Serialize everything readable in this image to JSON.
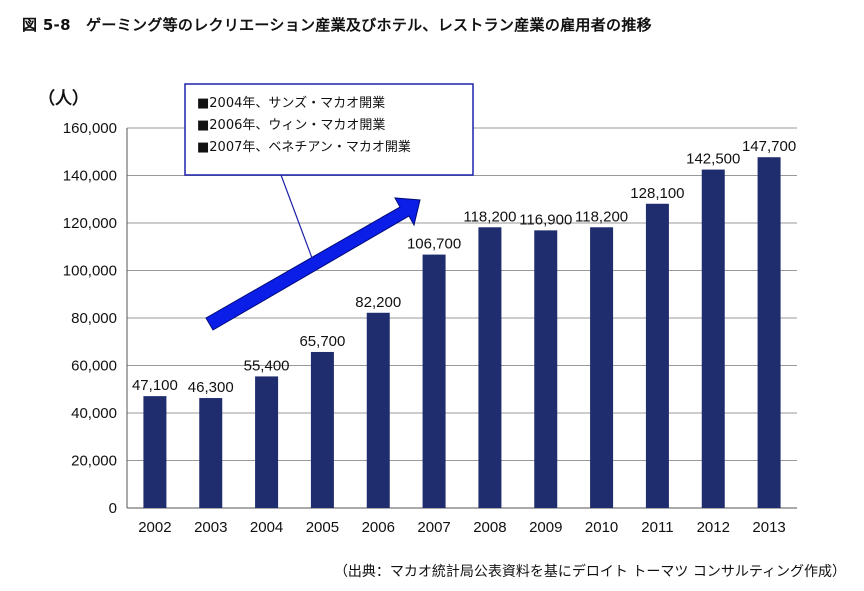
{
  "title": "図 5-8　ゲーミング等のレクリエーション産業及びホテル、レストラン産業の雇用者の推移",
  "source": "（出典：マカオ統計局公表資料を基にデロイト トーマツ コンサルティング作成）",
  "annotation": {
    "lines": [
      "■2004年、サンズ・マカオ開業",
      "■2006年、ウィン・マカオ開業",
      "■2007年、ベネチアン・マカオ開業"
    ]
  },
  "chart_data": {
    "type": "bar",
    "title": "図 5-8　ゲーミング等のレクリエーション産業及びホテル、レストラン産業の雇用者の推移",
    "ylabel": "（人）",
    "xlabel": "",
    "categories": [
      "2002",
      "2003",
      "2004",
      "2005",
      "2006",
      "2007",
      "2008",
      "2009",
      "2010",
      "2011",
      "2012",
      "2013"
    ],
    "values": [
      47100,
      46300,
      55400,
      65700,
      82200,
      106700,
      118200,
      116900,
      118200,
      128100,
      142500,
      147700
    ],
    "data_labels": [
      "47,100",
      "46,300",
      "55,400",
      "65,700",
      "82,200",
      "106,700",
      "118,200",
      "116,900",
      "118,200",
      "128,100",
      "142,500",
      "147,700"
    ],
    "yticks": [
      0,
      20000,
      40000,
      60000,
      80000,
      100000,
      120000,
      140000,
      160000
    ],
    "ytick_labels": [
      "0",
      "20,000",
      "40,000",
      "60,000",
      "80,000",
      "100,000",
      "120,000",
      "140,000",
      "160,000"
    ],
    "ylim": [
      0,
      160000
    ],
    "grid": true,
    "legend": "none",
    "colors": {
      "bar": "#1f2d6e",
      "grid": "#999999",
      "arrow": "#0a1ee8",
      "annotation_border": "#1e22a8"
    }
  }
}
